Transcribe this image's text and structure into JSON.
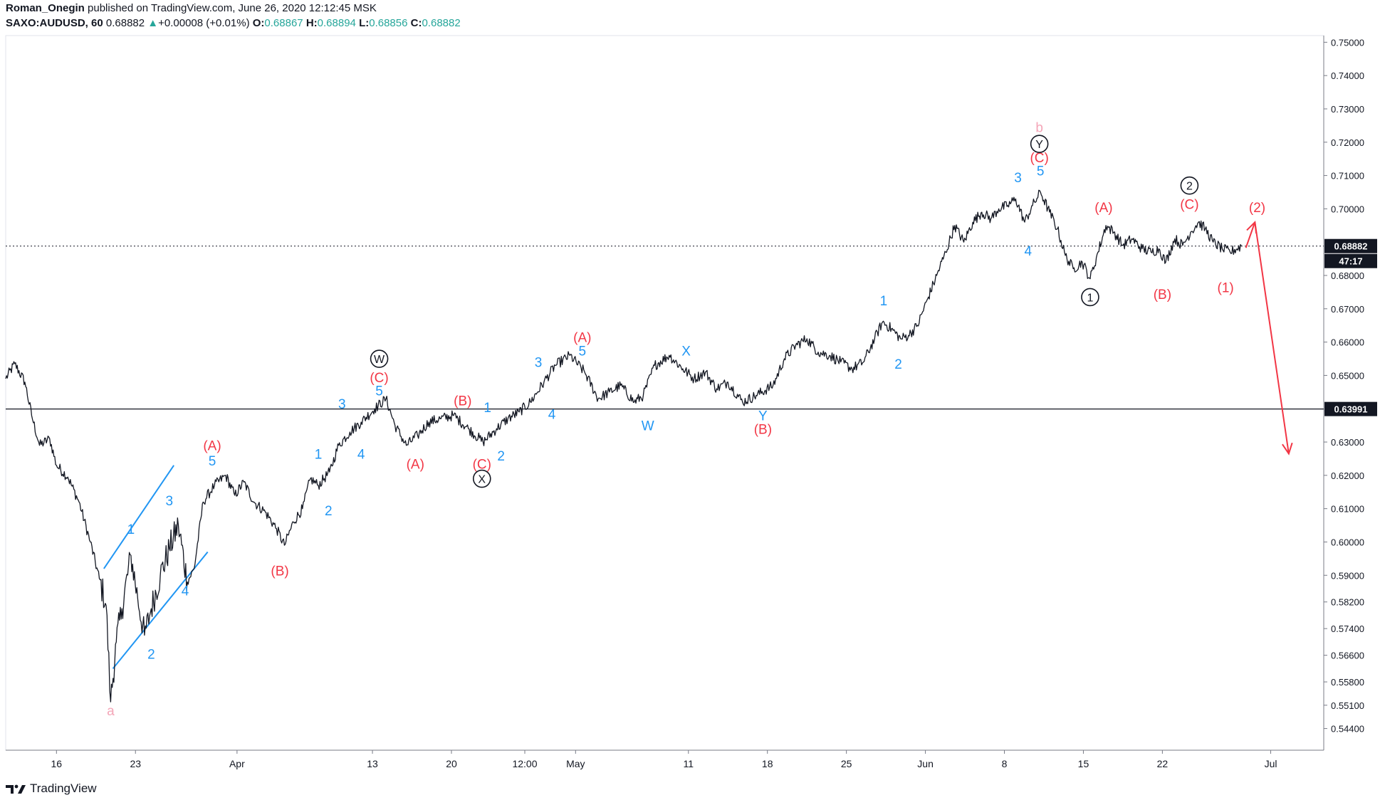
{
  "header": {
    "author": "Roman_Onegin",
    "published_text": " published on TradingView.com, June 26, 2020 12:12:45 MSK",
    "symbol": "SAXO:AUDUSD, 60",
    "last": "0.68882",
    "change_arrow": "▲",
    "change": "+0.00008 (+0.01%)",
    "o_label": "O:",
    "o_value": "0.68867",
    "h_label": "H:",
    "h_value": "0.68894",
    "l_label": "L:",
    "l_value": "0.68856",
    "c_label": "C:",
    "c_value": "0.68882"
  },
  "footer": {
    "brand": "TradingView",
    "logo_icon": "tradingview-logo-icon"
  },
  "colors": {
    "price": "#131722",
    "wave_blue": "#2196f3",
    "wave_red": "#f23645",
    "wave_pink": "#f4a6b8",
    "up": "#26a69a"
  },
  "chart_data": {
    "type": "line",
    "title": "SAXO:AUDUSD, 60",
    "xlabel": "",
    "ylabel": "",
    "ylim": [
      0.5375,
      0.752
    ],
    "y_ticks": [
      "0.75000",
      "0.74000",
      "0.73000",
      "0.72000",
      "0.71000",
      "0.70000",
      "0.68000",
      "0.67000",
      "0.66000",
      "0.65000",
      "0.63000",
      "0.62000",
      "0.61000",
      "0.60000",
      "0.59000",
      "0.58200",
      "0.57400",
      "0.56600",
      "0.55800",
      "0.55100",
      "0.54400"
    ],
    "x_ticks": [
      {
        "label": "16",
        "day": 16
      },
      {
        "label": "23",
        "day": 23
      },
      {
        "label": "Apr",
        "day": 32
      },
      {
        "label": "13",
        "day": 44
      },
      {
        "label": "20",
        "day": 51
      },
      {
        "label": "12:00",
        "day": 57.5
      },
      {
        "label": "May",
        "day": 62
      },
      {
        "label": "11",
        "day": 72
      },
      {
        "label": "18",
        "day": 79
      },
      {
        "label": "25",
        "day": 86
      },
      {
        "label": "Jun",
        "day": 93
      },
      {
        "label": "8",
        "day": 100
      },
      {
        "label": "15",
        "day": 107
      },
      {
        "label": "22",
        "day": 114
      },
      {
        "label": "Jul",
        "day": 123.6
      }
    ],
    "x_unit": "days since Feb 29, 2020",
    "x_range": [
      11.5,
      128.3
    ],
    "current_price": {
      "value": 0.68882,
      "label": "0.68882",
      "countdown": "47:17"
    },
    "level_line": {
      "value": 0.63991,
      "label": "0.63991"
    },
    "series": [
      {
        "name": "AUDUSD close",
        "points": [
          [
            11.5,
            0.649
          ],
          [
            12.3,
            0.6535
          ],
          [
            13.2,
            0.648
          ],
          [
            13.8,
            0.638
          ],
          [
            14.5,
            0.629
          ],
          [
            15.4,
            0.631
          ],
          [
            16.0,
            0.623
          ],
          [
            17.0,
            0.6195
          ],
          [
            18.0,
            0.612
          ],
          [
            19.0,
            0.6
          ],
          [
            19.8,
            0.589
          ],
          [
            20.4,
            0.581
          ],
          [
            20.8,
            0.552
          ],
          [
            21.3,
            0.57
          ],
          [
            21.8,
            0.58
          ],
          [
            22.6,
            0.596
          ],
          [
            23.2,
            0.583
          ],
          [
            23.8,
            0.572
          ],
          [
            24.4,
            0.58
          ],
          [
            25.2,
            0.59
          ],
          [
            26.0,
            0.598
          ],
          [
            26.8,
            0.605
          ],
          [
            27.6,
            0.588
          ],
          [
            28.2,
            0.592
          ],
          [
            29.0,
            0.612
          ],
          [
            30.0,
            0.617
          ],
          [
            31.0,
            0.62
          ],
          [
            31.8,
            0.614
          ],
          [
            32.6,
            0.618
          ],
          [
            33.5,
            0.612
          ],
          [
            34.5,
            0.609
          ],
          [
            35.5,
            0.604
          ],
          [
            36.2,
            0.599
          ],
          [
            37.0,
            0.606
          ],
          [
            37.8,
            0.61
          ],
          [
            38.5,
            0.619
          ],
          [
            39.2,
            0.617
          ],
          [
            40.2,
            0.621
          ],
          [
            41.0,
            0.629
          ],
          [
            42.0,
            0.633
          ],
          [
            43.0,
            0.636
          ],
          [
            44.2,
            0.64
          ],
          [
            45.2,
            0.643
          ],
          [
            46.0,
            0.635
          ],
          [
            47.0,
            0.629
          ],
          [
            48.0,
            0.632
          ],
          [
            49.0,
            0.636
          ],
          [
            50.0,
            0.637
          ],
          [
            51.2,
            0.638
          ],
          [
            52.5,
            0.634
          ],
          [
            53.8,
            0.63
          ],
          [
            55.0,
            0.634
          ],
          [
            56.0,
            0.637
          ],
          [
            57.0,
            0.639
          ],
          [
            58.0,
            0.642
          ],
          [
            59.2,
            0.648
          ],
          [
            60.2,
            0.653
          ],
          [
            61.5,
            0.656
          ],
          [
            62.8,
            0.651
          ],
          [
            64.0,
            0.643
          ],
          [
            65.0,
            0.645
          ],
          [
            66.0,
            0.647
          ],
          [
            67.2,
            0.642
          ],
          [
            68.0,
            0.644
          ],
          [
            69.0,
            0.653
          ],
          [
            70.3,
            0.656
          ],
          [
            71.5,
            0.652
          ],
          [
            72.5,
            0.649
          ],
          [
            73.5,
            0.651
          ],
          [
            74.5,
            0.646
          ],
          [
            75.5,
            0.648
          ],
          [
            76.8,
            0.642
          ],
          [
            78.0,
            0.644
          ],
          [
            79.5,
            0.647
          ],
          [
            80.5,
            0.655
          ],
          [
            81.5,
            0.659
          ],
          [
            82.5,
            0.661
          ],
          [
            83.5,
            0.657
          ],
          [
            84.5,
            0.656
          ],
          [
            85.5,
            0.654
          ],
          [
            86.5,
            0.652
          ],
          [
            87.5,
            0.654
          ],
          [
            88.5,
            0.661
          ],
          [
            89.2,
            0.666
          ],
          [
            90.0,
            0.664
          ],
          [
            90.8,
            0.661
          ],
          [
            91.5,
            0.662
          ],
          [
            92.3,
            0.665
          ],
          [
            93.2,
            0.673
          ],
          [
            94.0,
            0.68
          ],
          [
            94.8,
            0.687
          ],
          [
            95.6,
            0.695
          ],
          [
            96.4,
            0.69
          ],
          [
            97.2,
            0.696
          ],
          [
            98.0,
            0.699
          ],
          [
            98.8,
            0.697
          ],
          [
            99.5,
            0.7
          ],
          [
            100.3,
            0.701
          ],
          [
            101.0,
            0.703
          ],
          [
            101.8,
            0.696
          ],
          [
            102.5,
            0.701
          ],
          [
            103.2,
            0.705
          ],
          [
            104.0,
            0.699
          ],
          [
            104.7,
            0.694
          ],
          [
            105.4,
            0.686
          ],
          [
            106.1,
            0.682
          ],
          [
            106.9,
            0.684
          ],
          [
            107.6,
            0.679
          ],
          [
            108.3,
            0.687
          ],
          [
            109.0,
            0.695
          ],
          [
            109.7,
            0.693
          ],
          [
            110.5,
            0.689
          ],
          [
            111.3,
            0.691
          ],
          [
            112.2,
            0.688
          ],
          [
            113.0,
            0.687
          ],
          [
            113.7,
            0.688
          ],
          [
            114.3,
            0.684
          ],
          [
            115.1,
            0.691
          ],
          [
            115.8,
            0.689
          ],
          [
            116.5,
            0.693
          ],
          [
            117.2,
            0.696
          ],
          [
            117.8,
            0.694
          ],
          [
            118.5,
            0.69
          ],
          [
            119.3,
            0.688
          ],
          [
            120.0,
            0.687
          ],
          [
            121.0,
            0.6888
          ]
        ]
      }
    ],
    "projection": {
      "points": [
        [
          121.4,
          0.6883
        ],
        [
          122.2,
          0.696
        ],
        [
          125.2,
          0.6265
        ]
      ],
      "style": "red arrow"
    },
    "trendlines": [
      {
        "points": [
          [
            20.2,
            0.592
          ],
          [
            26.4,
            0.623
          ]
        ]
      },
      {
        "points": [
          [
            21.0,
            0.562
          ],
          [
            29.4,
            0.597
          ]
        ]
      }
    ],
    "annotations": [
      {
        "text": "a",
        "day": 20.8,
        "price": 0.548,
        "color": "pink"
      },
      {
        "text": "1",
        "day": 22.6,
        "price": 0.6025,
        "color": "blue"
      },
      {
        "text": "2",
        "day": 24.4,
        "price": 0.565,
        "color": "blue"
      },
      {
        "text": "3",
        "day": 26.0,
        "price": 0.611,
        "color": "blue"
      },
      {
        "text": "4",
        "day": 27.4,
        "price": 0.584,
        "color": "blue"
      },
      {
        "text": "5",
        "day": 29.8,
        "price": 0.623,
        "color": "blue"
      },
      {
        "text": "(A)",
        "day": 29.8,
        "price": 0.6275,
        "color": "red"
      },
      {
        "text": "(B)",
        "day": 35.8,
        "price": 0.59,
        "color": "red"
      },
      {
        "text": "1",
        "day": 39.2,
        "price": 0.625,
        "color": "blue"
      },
      {
        "text": "2",
        "day": 40.1,
        "price": 0.608,
        "color": "blue"
      },
      {
        "text": "3",
        "day": 41.3,
        "price": 0.64,
        "color": "blue"
      },
      {
        "text": "4",
        "day": 43.0,
        "price": 0.625,
        "color": "blue"
      },
      {
        "text": "5",
        "day": 44.6,
        "price": 0.644,
        "color": "blue"
      },
      {
        "text": "(C)",
        "day": 44.6,
        "price": 0.648,
        "color": "red"
      },
      {
        "text": "W",
        "day": 44.6,
        "price": 0.6535,
        "color": "black",
        "circled": true
      },
      {
        "text": "(A)",
        "day": 47.8,
        "price": 0.622,
        "color": "red"
      },
      {
        "text": "(B)",
        "day": 52.0,
        "price": 0.641,
        "color": "red"
      },
      {
        "text": "1",
        "day": 54.2,
        "price": 0.639,
        "color": "blue"
      },
      {
        "text": "2",
        "day": 55.4,
        "price": 0.6245,
        "color": "blue"
      },
      {
        "text": "(C)",
        "day": 53.7,
        "price": 0.622,
        "color": "red"
      },
      {
        "text": "X",
        "day": 53.7,
        "price": 0.6175,
        "color": "black",
        "circled": true
      },
      {
        "text": "3",
        "day": 58.7,
        "price": 0.6525,
        "color": "blue"
      },
      {
        "text": "4",
        "day": 59.9,
        "price": 0.637,
        "color": "blue"
      },
      {
        "text": "5",
        "day": 62.6,
        "price": 0.656,
        "color": "blue"
      },
      {
        "text": "(A)",
        "day": 62.6,
        "price": 0.66,
        "color": "red"
      },
      {
        "text": "W",
        "day": 68.4,
        "price": 0.6335,
        "color": "blue"
      },
      {
        "text": "X",
        "day": 71.8,
        "price": 0.656,
        "color": "blue"
      },
      {
        "text": "Y",
        "day": 78.6,
        "price": 0.6365,
        "color": "blue"
      },
      {
        "text": "(B)",
        "day": 78.6,
        "price": 0.6325,
        "color": "red"
      },
      {
        "text": "1",
        "day": 89.3,
        "price": 0.671,
        "color": "blue"
      },
      {
        "text": "2",
        "day": 90.6,
        "price": 0.652,
        "color": "blue"
      },
      {
        "text": "3",
        "day": 101.2,
        "price": 0.708,
        "color": "blue"
      },
      {
        "text": "4",
        "day": 102.1,
        "price": 0.686,
        "color": "blue"
      },
      {
        "text": "5",
        "day": 103.2,
        "price": 0.71,
        "color": "blue"
      },
      {
        "text": "(C)",
        "day": 103.1,
        "price": 0.714,
        "color": "red"
      },
      {
        "text": "Y",
        "day": 103.1,
        "price": 0.718,
        "color": "black",
        "circled": true
      },
      {
        "text": "b",
        "day": 103.1,
        "price": 0.723,
        "color": "pink"
      },
      {
        "text": "(A)",
        "day": 108.8,
        "price": 0.699,
        "color": "red"
      },
      {
        "text": "1",
        "day": 107.6,
        "price": 0.672,
        "color": "black",
        "circled": true
      },
      {
        "text": "(B)",
        "day": 114.0,
        "price": 0.673,
        "color": "red"
      },
      {
        "text": "(C)",
        "day": 116.4,
        "price": 0.7,
        "color": "red"
      },
      {
        "text": "2",
        "day": 116.4,
        "price": 0.7055,
        "color": "black",
        "circled": true
      },
      {
        "text": "(1)",
        "day": 119.6,
        "price": 0.675,
        "color": "red"
      },
      {
        "text": "(2)",
        "day": 122.4,
        "price": 0.699,
        "color": "red"
      }
    ]
  }
}
